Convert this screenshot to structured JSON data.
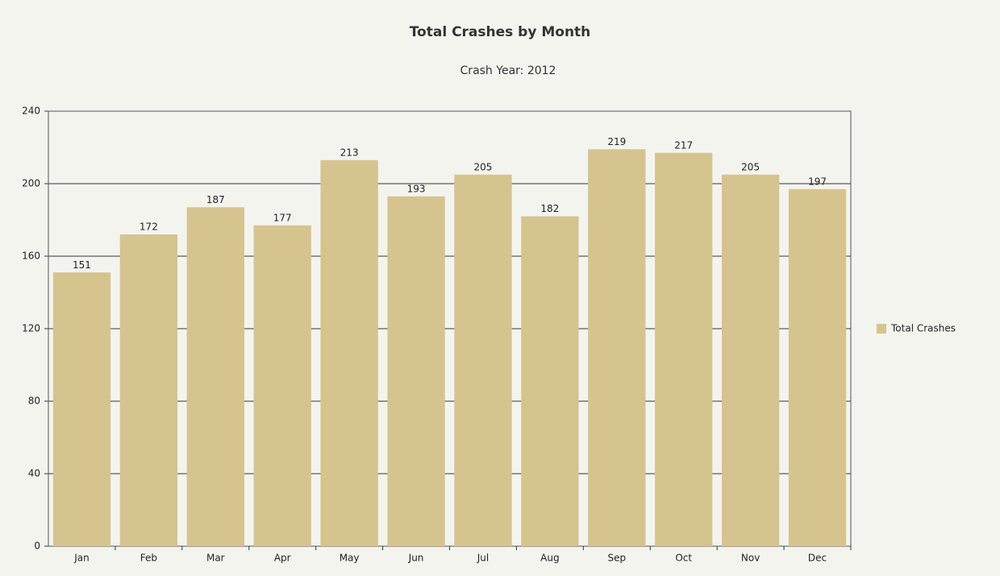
{
  "chart_data": {
    "type": "bar",
    "title": "Total Crashes by Month",
    "subtitle": "Crash Year: 2012",
    "categories": [
      "Jan",
      "Feb",
      "Mar",
      "Apr",
      "May",
      "Jun",
      "Jul",
      "Aug",
      "Sep",
      "Oct",
      "Nov",
      "Dec"
    ],
    "series": [
      {
        "name": "Total Crashes",
        "color": "#d6c48f",
        "values": [
          151,
          172,
          187,
          177,
          213,
          193,
          205,
          182,
          219,
          217,
          205,
          197
        ]
      }
    ],
    "ylim": [
      0,
      240
    ],
    "yticks": [
      0,
      40,
      80,
      120,
      160,
      200,
      240
    ],
    "grid": true,
    "legend": "right"
  }
}
